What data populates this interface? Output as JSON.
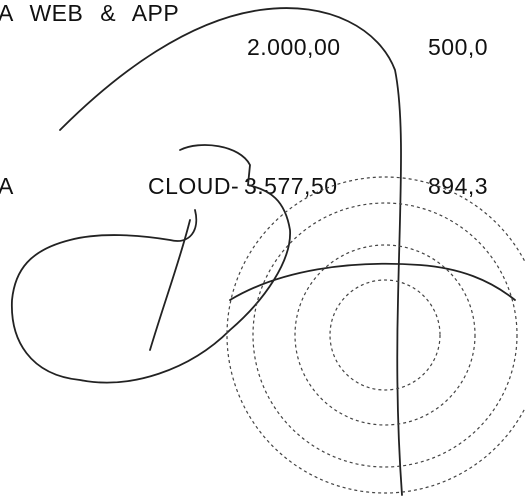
{
  "table": {
    "rows": [
      [
        "A WEB & APP",
        "2.000,00",
        "500,0"
      ],
      [
        "A",
        "CLOUD-",
        "3.577,50",
        "894,3"
      ]
    ]
  }
}
